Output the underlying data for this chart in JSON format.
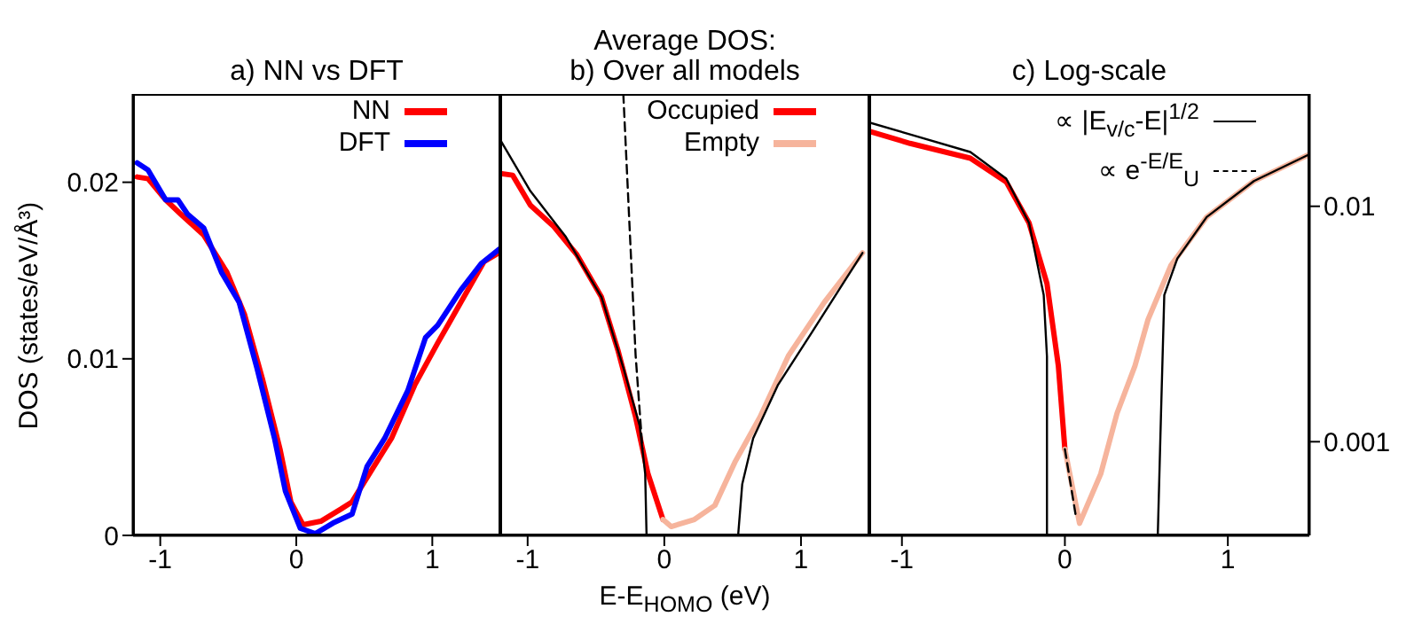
{
  "chart_data": [
    {
      "type": "line",
      "title": "a) NN vs DFT",
      "ylabel": "DOS (states/eV/Å³)",
      "xlim": [
        -1.2,
        1.5
      ],
      "xticks": [
        -1,
        0,
        1
      ],
      "ylim": [
        0,
        0.025
      ],
      "yticks": [
        0,
        0.01,
        0.02
      ],
      "legend": "top right",
      "series": [
        {
          "name": "NN",
          "color": "#ff0000",
          "x": [
            -1.17,
            -1.09,
            -0.96,
            -0.85,
            -0.68,
            -0.51,
            -0.38,
            -0.25,
            -0.12,
            -0.04,
            0.05,
            0.18,
            0.33,
            0.41,
            0.57,
            0.7,
            0.87,
            1.04,
            1.21,
            1.38,
            1.49
          ],
          "values": [
            0.0203,
            0.0202,
            0.019,
            0.0182,
            0.017,
            0.0149,
            0.0125,
            0.0089,
            0.0049,
            0.0019,
            0.0006,
            0.0008,
            0.0015,
            0.0019,
            0.0039,
            0.0055,
            0.0085,
            0.0109,
            0.0132,
            0.0155,
            0.016
          ]
        },
        {
          "name": "DFT",
          "color": "#0000ff",
          "x": [
            -1.17,
            -1.09,
            -0.96,
            -0.87,
            -0.8,
            -0.68,
            -0.55,
            -0.42,
            -0.29,
            -0.16,
            -0.08,
            0.03,
            0.14,
            0.27,
            0.41,
            0.52,
            0.65,
            0.82,
            0.95,
            1.04,
            1.21,
            1.36,
            1.49
          ],
          "values": [
            0.0211,
            0.0207,
            0.019,
            0.019,
            0.0182,
            0.0174,
            0.0149,
            0.0132,
            0.0095,
            0.0055,
            0.0025,
            0.0004,
            0.0001,
            0.0007,
            0.0012,
            0.0039,
            0.0055,
            0.0082,
            0.0112,
            0.0119,
            0.0139,
            0.0154,
            0.0162
          ]
        }
      ]
    },
    {
      "type": "line",
      "title": "Average DOS:",
      "subtitle": "b) Over all models",
      "xlabel": "E-E$_{HOMO}$ (eV)",
      "xlim": [
        -1.2,
        1.5
      ],
      "xticks": [
        -1,
        0,
        1
      ],
      "ylim": [
        0,
        0.025
      ],
      "yticks": [
        0,
        0.01,
        0.02
      ],
      "tick_labels": "x",
      "legend": "top right",
      "series": [
        {
          "name": "Occupied",
          "color": "#ff0000",
          "x": [
            -1.2,
            -1.11,
            -0.98,
            -0.81,
            -0.64,
            -0.46,
            -0.34,
            -0.21,
            -0.12,
            -0.01
          ],
          "values": [
            0.0205,
            0.0204,
            0.0187,
            0.0175,
            0.0159,
            0.0135,
            0.0105,
            0.0067,
            0.0035,
            0.0009
          ]
        },
        {
          "name": "Empty",
          "color": "#f6b49c",
          "x": [
            -0.01,
            0.05,
            0.22,
            0.37,
            0.52,
            0.7,
            0.91,
            1.17,
            1.45
          ],
          "values": [
            0.0009,
            0.0005,
            0.0009,
            0.0017,
            0.0042,
            0.0067,
            0.0102,
            0.0132,
            0.016
          ]
        },
        {
          "color": "#000000",
          "line_style": "solid",
          "x": [
            -1.2,
            -0.98,
            -0.72,
            -0.46,
            -0.3,
            -0.18,
            -0.14,
            -0.13
          ],
          "values": [
            0.0224,
            0.0195,
            0.0169,
            0.0135,
            0.0095,
            0.0062,
            0.0035,
            0
          ]
        },
        {
          "color": "#000000",
          "line_style": "solid",
          "x": [
            0.54,
            0.57,
            0.65,
            0.83,
            1.08,
            1.45
          ],
          "values": [
            0,
            0.0029,
            0.0055,
            0.0085,
            0.0115,
            0.016
          ]
        },
        {
          "color": "#000000",
          "line_style": "dashed",
          "x": [
            -0.3,
            -0.21,
            -0.16
          ],
          "values": [
            0.025,
            0.0102,
            0.0049
          ]
        }
      ]
    },
    {
      "type": "line",
      "title": "c) Log-scale",
      "xlim": [
        -1.2,
        1.5
      ],
      "xticks": [
        -1,
        0,
        1
      ],
      "y2lim": [
        0.0004,
        0.03
      ],
      "y2ticks": [
        0.01,
        0.001
      ],
      "log": "y2",
      "legend": "top right",
      "series": [
        {
          "color": "#ff0000",
          "axis": "y2",
          "x": [
            -1.2,
            -0.95,
            -0.58,
            -0.36,
            -0.22,
            -0.11,
            -0.04,
            0.0
          ],
          "values": [
            0.0208,
            0.0185,
            0.016,
            0.0127,
            0.0085,
            0.0047,
            0.0021,
            0.00093
          ]
        },
        {
          "color": "#f6b49c",
          "axis": "y2",
          "x": [
            0.0,
            0.09,
            0.22,
            0.32,
            0.43,
            0.51,
            0.65,
            0.87,
            1.16,
            1.49
          ],
          "values": [
            0.00093,
            0.00045,
            0.00073,
            0.00132,
            0.0021,
            0.0033,
            0.0056,
            0.009,
            0.0128,
            0.0165
          ]
        },
        {
          "name": "∝ |E$_{v/c}$-E|$^{1/2}$",
          "color": "#000000",
          "line_style": "solid",
          "axis": "y2",
          "x": [
            -1.2,
            -0.95,
            -0.58,
            -0.36,
            -0.22,
            -0.13,
            -0.11,
            -0.11
          ],
          "values": [
            0.0227,
            0.0202,
            0.017,
            0.0131,
            0.0085,
            0.0042,
            0.0023,
            0.0004
          ]
        },
        {
          "color": "#000000",
          "line_style": "solid",
          "axis": "y2",
          "x": [
            0.57,
            0.59,
            0.61,
            0.69,
            0.87,
            1.16,
            1.49
          ],
          "values": [
            0.0004,
            0.00132,
            0.0042,
            0.006,
            0.009,
            0.0128,
            0.0165
          ]
        },
        {
          "name": "∝ e$^{-E/E}$$_{U}$",
          "color": "#000000",
          "line_style": "dashed",
          "axis": "y2",
          "x": [
            0.0,
            0.07
          ],
          "values": [
            0.00093,
            0.00047
          ]
        }
      ]
    }
  ]
}
